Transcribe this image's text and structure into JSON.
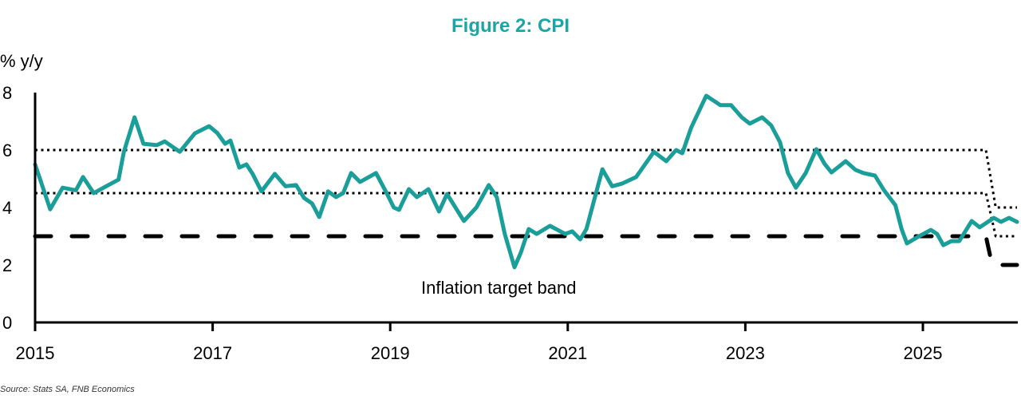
{
  "chart_data": {
    "type": "line",
    "title": "Figure 2: CPI",
    "ylabel": "% y/y",
    "xlabel": "",
    "xlim": [
      2015,
      2026.06
    ],
    "ylim": [
      0,
      8
    ],
    "x_ticks": [
      "2015",
      "2017",
      "2019",
      "2021",
      "2023",
      "2025"
    ],
    "y_ticks": [
      "0",
      "2",
      "4",
      "6",
      "8"
    ],
    "grid": false,
    "annotation": "Inflation target band",
    "source": "Source: Stats SA, FNB Economics",
    "colors": {
      "cpi": "#1a9e9a",
      "band": "#000000",
      "title": "#1aa6a6"
    },
    "series": [
      {
        "style": "solid",
        "points": [
          [
            2015.0,
            5.5
          ],
          [
            2015.17,
            3.94
          ],
          [
            2015.31,
            4.69
          ],
          [
            2015.46,
            4.6
          ],
          [
            2015.54,
            5.06
          ],
          [
            2015.66,
            4.5
          ],
          [
            2015.8,
            4.74
          ],
          [
            2015.94,
            4.97
          ],
          [
            2016.0,
            5.94
          ],
          [
            2016.12,
            7.14
          ],
          [
            2016.22,
            6.22
          ],
          [
            2016.37,
            6.17
          ],
          [
            2016.46,
            6.3
          ],
          [
            2016.63,
            5.94
          ],
          [
            2016.8,
            6.58
          ],
          [
            2016.96,
            6.83
          ],
          [
            2017.05,
            6.6
          ],
          [
            2017.14,
            6.22
          ],
          [
            2017.2,
            6.33
          ],
          [
            2017.3,
            5.39
          ],
          [
            2017.38,
            5.5
          ],
          [
            2017.45,
            5.17
          ],
          [
            2017.55,
            4.56
          ],
          [
            2017.7,
            5.17
          ],
          [
            2017.82,
            4.74
          ],
          [
            2017.94,
            4.78
          ],
          [
            2018.03,
            4.33
          ],
          [
            2018.12,
            4.14
          ],
          [
            2018.2,
            3.67
          ],
          [
            2018.3,
            4.56
          ],
          [
            2018.39,
            4.36
          ],
          [
            2018.47,
            4.5
          ],
          [
            2018.56,
            5.2
          ],
          [
            2018.66,
            4.89
          ],
          [
            2018.84,
            5.2
          ],
          [
            2018.95,
            4.56
          ],
          [
            2019.04,
            4.0
          ],
          [
            2019.1,
            3.92
          ],
          [
            2019.21,
            4.64
          ],
          [
            2019.3,
            4.36
          ],
          [
            2019.43,
            4.64
          ],
          [
            2019.55,
            3.86
          ],
          [
            2019.64,
            4.47
          ],
          [
            2019.83,
            3.53
          ],
          [
            2019.97,
            4.0
          ],
          [
            2020.11,
            4.78
          ],
          [
            2020.2,
            4.36
          ],
          [
            2020.29,
            3.08
          ],
          [
            2020.4,
            1.92
          ],
          [
            2020.47,
            2.42
          ],
          [
            2020.56,
            3.25
          ],
          [
            2020.65,
            3.08
          ],
          [
            2020.8,
            3.36
          ],
          [
            2020.97,
            3.08
          ],
          [
            2021.05,
            3.17
          ],
          [
            2021.14,
            2.89
          ],
          [
            2021.21,
            3.25
          ],
          [
            2021.39,
            5.33
          ],
          [
            2021.5,
            4.74
          ],
          [
            2021.61,
            4.83
          ],
          [
            2021.77,
            5.06
          ],
          [
            2021.97,
            5.94
          ],
          [
            2022.11,
            5.61
          ],
          [
            2022.22,
            6.0
          ],
          [
            2022.29,
            5.89
          ],
          [
            2022.39,
            6.78
          ],
          [
            2022.56,
            7.89
          ],
          [
            2022.72,
            7.56
          ],
          [
            2022.84,
            7.56
          ],
          [
            2022.96,
            7.14
          ],
          [
            2023.05,
            6.92
          ],
          [
            2023.19,
            7.14
          ],
          [
            2023.29,
            6.86
          ],
          [
            2023.39,
            6.28
          ],
          [
            2023.48,
            5.2
          ],
          [
            2023.57,
            4.69
          ],
          [
            2023.68,
            5.2
          ],
          [
            2023.8,
            6.03
          ],
          [
            2023.89,
            5.53
          ],
          [
            2023.97,
            5.22
          ],
          [
            2024.13,
            5.61
          ],
          [
            2024.24,
            5.31
          ],
          [
            2024.33,
            5.2
          ],
          [
            2024.46,
            5.11
          ],
          [
            2024.56,
            4.61
          ],
          [
            2024.69,
            4.08
          ],
          [
            2024.76,
            3.25
          ],
          [
            2024.82,
            2.75
          ],
          [
            2024.94,
            2.97
          ],
          [
            2025.09,
            3.22
          ],
          [
            2025.16,
            3.08
          ],
          [
            2025.23,
            2.69
          ],
          [
            2025.32,
            2.83
          ],
          [
            2025.41,
            2.83
          ],
          [
            2025.55,
            3.53
          ],
          [
            2025.64,
            3.31
          ],
          [
            2025.8,
            3.64
          ],
          [
            2025.88,
            3.5
          ],
          [
            2025.97,
            3.64
          ],
          [
            2026.06,
            3.5
          ]
        ]
      },
      {
        "style": "dotted",
        "points": [
          [
            2015.0,
            6
          ],
          [
            2025.71,
            6
          ],
          [
            2025.82,
            4
          ],
          [
            2026.06,
            4
          ]
        ]
      },
      {
        "style": "dotted",
        "points": [
          [
            2015.0,
            4.5
          ],
          [
            2025.71,
            4.5
          ],
          [
            2025.82,
            3
          ],
          [
            2026.06,
            3
          ]
        ]
      },
      {
        "style": "dashed",
        "points": [
          [
            2015.0,
            3
          ],
          [
            2025.71,
            3
          ],
          [
            2025.78,
            2
          ],
          [
            2026.06,
            2
          ]
        ]
      }
    ]
  }
}
